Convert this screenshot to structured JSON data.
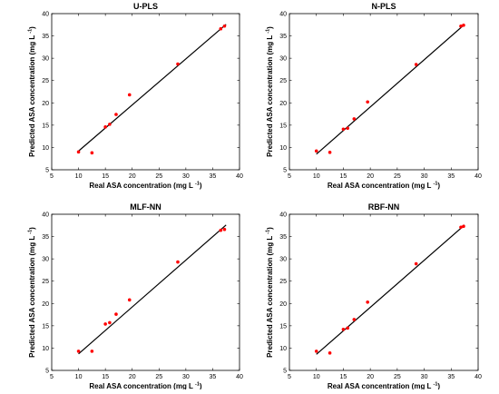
{
  "chart_data": [
    {
      "type": "scatter",
      "title": "U-PLS",
      "xlabel": "Real ASA concentration (mg L",
      "ylabel": "Predicted ASA concentration (mg L",
      "unit_exponent": "-1",
      "xlim": [
        5,
        40
      ],
      "ylim": [
        5,
        40
      ],
      "xticks": [
        5,
        10,
        15,
        20,
        25,
        30,
        35,
        40
      ],
      "yticks": [
        5,
        10,
        15,
        20,
        25,
        30,
        35,
        40
      ],
      "grid": false,
      "series": [
        {
          "x": [
            10,
            12.5,
            15,
            15.8,
            17,
            19.5,
            28.5,
            36.5,
            37.2
          ],
          "y": [
            9,
            8.8,
            14.6,
            15.2,
            17.4,
            21.8,
            28.7,
            36.6,
            37.2
          ]
        }
      ],
      "fit_line": {
        "x": [
          10,
          37.5
        ],
        "y": [
          9.2,
          37.6
        ]
      },
      "point_color": "#ff0000",
      "line_color": "#000000"
    },
    {
      "type": "scatter",
      "title": "N-PLS",
      "xlabel": "Real ASA concentration (mg L",
      "ylabel": "Predicted ASA concentration (mg L",
      "unit_exponent": "-1",
      "xlim": [
        5,
        40
      ],
      "ylim": [
        5,
        40
      ],
      "xticks": [
        5,
        10,
        15,
        20,
        25,
        30,
        35,
        40
      ],
      "yticks": [
        5,
        10,
        15,
        20,
        25,
        30,
        35,
        40
      ],
      "grid": false,
      "series": [
        {
          "x": [
            10,
            12.5,
            15,
            15.8,
            17,
            19.5,
            28.5,
            36.8,
            37.3
          ],
          "y": [
            9.2,
            8.9,
            14.1,
            14.3,
            16.4,
            20.2,
            28.6,
            37.2,
            37.4
          ]
        }
      ],
      "fit_line": {
        "x": [
          10,
          37.5
        ],
        "y": [
          8.5,
          37.6
        ]
      },
      "point_color": "#ff0000",
      "line_color": "#000000"
    },
    {
      "type": "scatter",
      "title": "MLF-NN",
      "xlabel": "Real ASA concentration (mg L",
      "ylabel": "Predicted ASA concentration (mg L",
      "unit_exponent": "-1",
      "xlim": [
        5,
        40
      ],
      "ylim": [
        5,
        40
      ],
      "xticks": [
        5,
        10,
        15,
        20,
        25,
        30,
        35,
        40
      ],
      "yticks": [
        5,
        10,
        15,
        20,
        25,
        30,
        35,
        40
      ],
      "grid": false,
      "series": [
        {
          "x": [
            10,
            12.5,
            15,
            15.8,
            17,
            19.5,
            28.5,
            36.5,
            37.2
          ],
          "y": [
            9.3,
            9.3,
            15.4,
            15.7,
            17.6,
            20.8,
            29.3,
            36.4,
            36.6
          ]
        }
      ],
      "fit_line": {
        "x": [
          10,
          37.5
        ],
        "y": [
          8.7,
          37.6
        ]
      },
      "point_color": "#ff0000",
      "line_color": "#000000"
    },
    {
      "type": "scatter",
      "title": "RBF-NN",
      "xlabel": "Real ASA concentration (mg L",
      "ylabel": "Predicted ASA concentration (mg L",
      "unit_exponent": "-1",
      "xlim": [
        5,
        40
      ],
      "ylim": [
        5,
        40
      ],
      "xticks": [
        5,
        10,
        15,
        20,
        25,
        30,
        35,
        40
      ],
      "yticks": [
        5,
        10,
        15,
        20,
        25,
        30,
        35,
        40
      ],
      "grid": false,
      "series": [
        {
          "x": [
            10,
            12.5,
            15,
            15.8,
            17,
            19.5,
            28.5,
            36.8,
            37.3
          ],
          "y": [
            9.3,
            8.9,
            14.2,
            14.5,
            16.4,
            20.3,
            28.9,
            37.1,
            37.3
          ]
        }
      ],
      "fit_line": {
        "x": [
          10,
          37.5
        ],
        "y": [
          8.6,
          37.6
        ]
      },
      "point_color": "#ff0000",
      "line_color": "#000000"
    }
  ]
}
